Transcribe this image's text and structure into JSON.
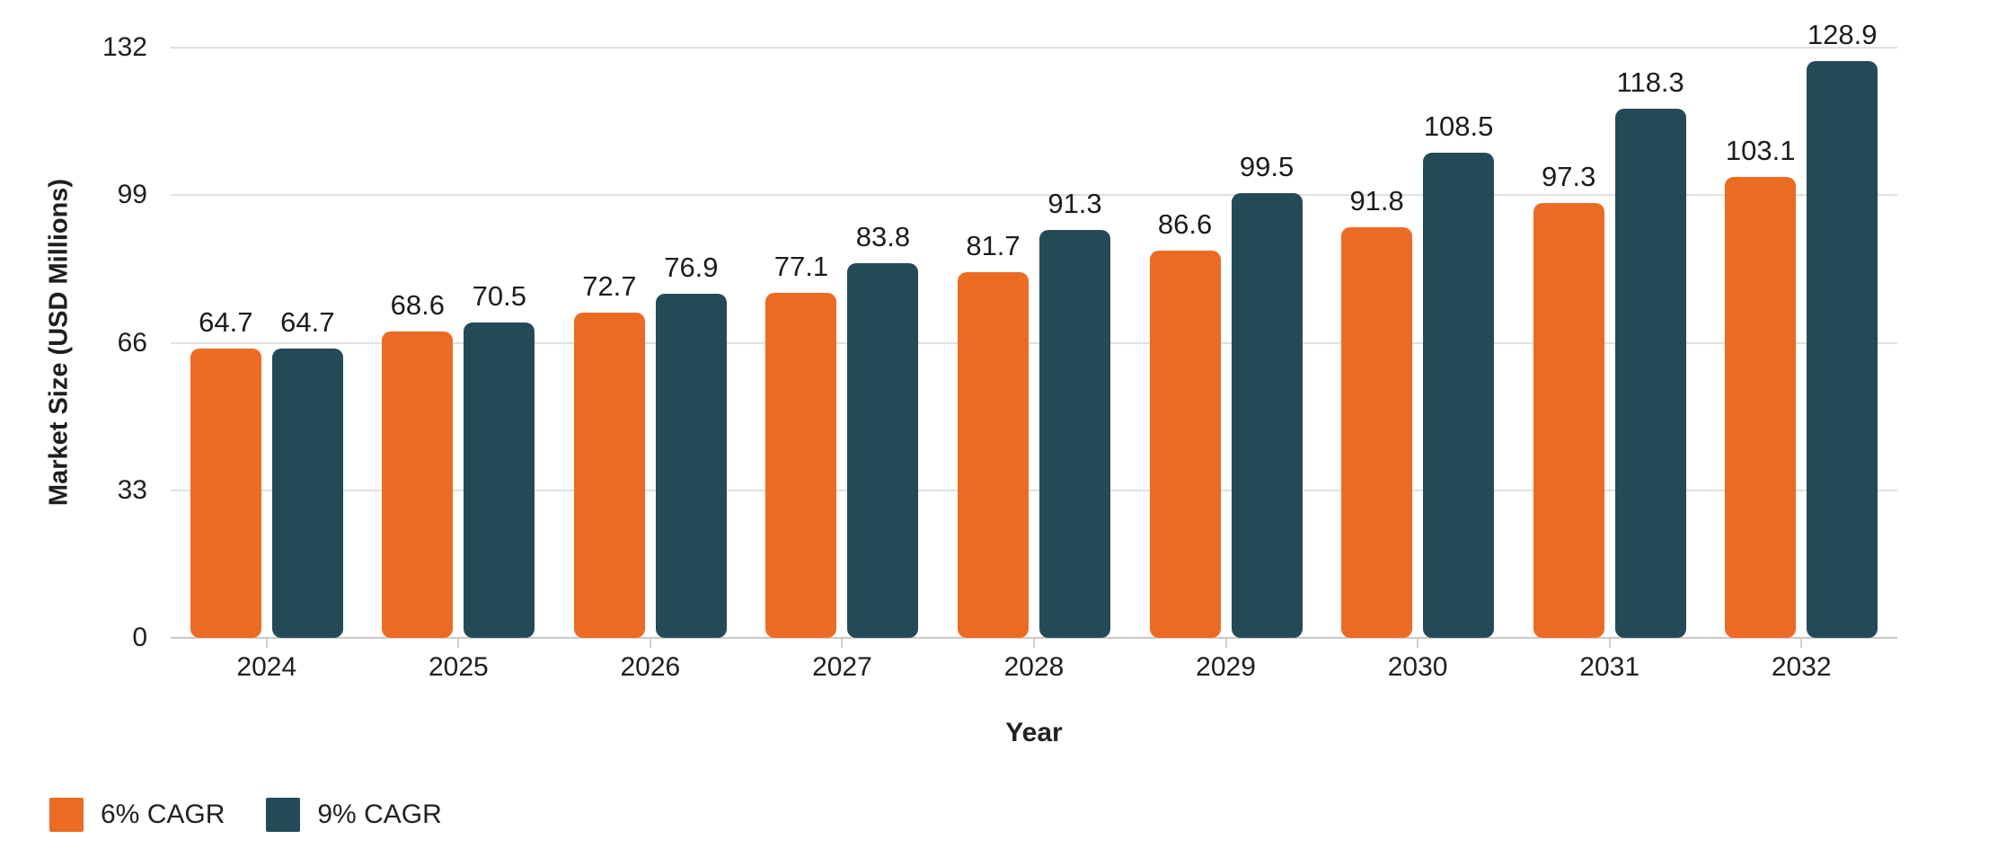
{
  "chart_data": {
    "type": "bar",
    "title": "",
    "xlabel": "Year",
    "ylabel": "Market Size (USD Millions)",
    "categories": [
      "2024",
      "2025",
      "2026",
      "2027",
      "2028",
      "2029",
      "2030",
      "2031",
      "2032"
    ],
    "series": [
      {
        "name": "6% CAGR",
        "color": "#EC6B23",
        "values": [
          64.7,
          68.6,
          72.7,
          77.1,
          81.7,
          86.6,
          91.8,
          97.3,
          103.1
        ]
      },
      {
        "name": "9% CAGR",
        "color": "#254A57",
        "values": [
          64.7,
          70.5,
          76.9,
          83.8,
          91.3,
          99.5,
          108.5,
          118.3,
          128.9
        ]
      }
    ],
    "ylim": [
      0,
      132
    ],
    "yticks": [
      0,
      33,
      66,
      99,
      132
    ],
    "grid": true,
    "legend_position": "bottom-left",
    "colors": {
      "grid": "#e0e0e0",
      "axis": "#c9c9c9",
      "text": "#1f1f1f"
    }
  }
}
